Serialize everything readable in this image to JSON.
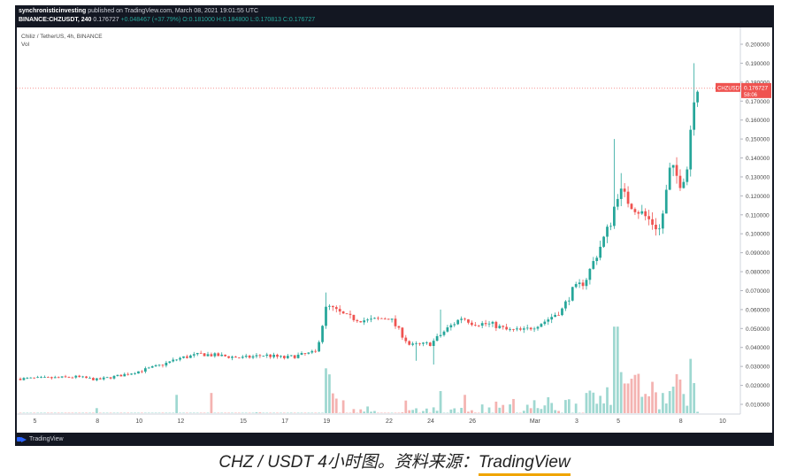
{
  "header": {
    "publisher": "synchronisticinvesting",
    "published_text": "published on TradingView.com, March 08, 2021 19:01:55 UTC",
    "symbol_line_prefix": "BINANCE:CHZUSDT, 240",
    "last": "0.176727",
    "change": "+0.048467 (+37.79%)",
    "ohlc_text": "O:0.181000 H:0.184800 L:0.170813 C:0.176727"
  },
  "footer": {
    "brand": "TradingView"
  },
  "caption": {
    "text": "CHZ / USDT 4小时图。资料来源：",
    "source": "TradingView"
  },
  "colors": {
    "up": "#26a69a",
    "down": "#ef5350",
    "up_vol": "#9fd8d1",
    "down_vol": "#f4b3b1",
    "price_line": "#ef5350",
    "background": "#ffffff"
  },
  "chart_data": {
    "type": "candlestick",
    "title": "Chiliz / TetherUS, 4h, BINANCE",
    "volume_label": "Vol",
    "current_price_label": "CHZUSDT",
    "current_price": 0.176727,
    "countdown": "58:06",
    "ylim": [
      0,
      0.21
    ],
    "y_ticks": [
      "0.200000",
      "0.190000",
      "0.180000",
      "0.170000",
      "0.160000",
      "0.150000",
      "0.140000",
      "0.130000",
      "0.120000",
      "0.110000",
      "0.100000",
      "0.090000",
      "0.080000",
      "0.070000",
      "0.060000",
      "0.050000",
      "0.040000",
      "0.030000",
      "0.020000",
      "0.010000"
    ],
    "x_ticks": [
      {
        "label": "5",
        "day": 0
      },
      {
        "label": "8",
        "day": 3
      },
      {
        "label": "10",
        "day": 5
      },
      {
        "label": "12",
        "day": 7
      },
      {
        "label": "15",
        "day": 10
      },
      {
        "label": "17",
        "day": 12
      },
      {
        "label": "19",
        "day": 14
      },
      {
        "label": "22",
        "day": 17
      },
      {
        "label": "24",
        "day": 19
      },
      {
        "label": "26",
        "day": 21
      },
      {
        "label": "Mar",
        "day": 24
      },
      {
        "label": "3",
        "day": 26
      },
      {
        "label": "5",
        "day": 28
      },
      {
        "label": "8",
        "day": 31
      },
      {
        "label": "10",
        "day": 33
      }
    ],
    "days_span": [
      -0.7,
      33.6
    ],
    "close_keyframes": [
      [
        -0.8,
        0.0235
      ],
      [
        1.0,
        0.024
      ],
      [
        2.0,
        0.0245
      ],
      [
        3.0,
        0.023
      ],
      [
        4.0,
        0.025
      ],
      [
        5.0,
        0.0275
      ],
      [
        6.0,
        0.0305
      ],
      [
        7.0,
        0.0345
      ],
      [
        8.0,
        0.0365
      ],
      [
        9.0,
        0.0355
      ],
      [
        10.0,
        0.0345
      ],
      [
        11.0,
        0.036
      ],
      [
        12.0,
        0.0345
      ],
      [
        13.5,
        0.0375
      ],
      [
        14.0,
        0.062
      ],
      [
        15.0,
        0.056
      ],
      [
        16.0,
        0.054
      ],
      [
        17.0,
        0.056
      ],
      [
        18.0,
        0.041
      ],
      [
        19.0,
        0.042
      ],
      [
        19.8,
        0.05
      ],
      [
        20.5,
        0.056
      ],
      [
        21.0,
        0.053
      ],
      [
        22.0,
        0.052
      ],
      [
        22.7,
        0.049
      ],
      [
        23.5,
        0.049
      ],
      [
        24.5,
        0.054
      ],
      [
        25.3,
        0.06
      ],
      [
        25.8,
        0.07
      ],
      [
        26.4,
        0.075
      ],
      [
        27.0,
        0.09
      ],
      [
        27.6,
        0.105
      ],
      [
        28.0,
        0.123
      ],
      [
        28.5,
        0.117
      ],
      [
        29.0,
        0.112
      ],
      [
        30.0,
        0.102
      ],
      [
        30.5,
        0.135
      ],
      [
        31.0,
        0.127
      ],
      [
        31.3,
        0.135
      ],
      [
        31.5,
        0.16
      ],
      [
        31.7,
        0.181
      ],
      [
        31.9,
        0.1767
      ]
    ],
    "volume_keyframes": [
      [
        -0.8,
        0.0035
      ],
      [
        13.8,
        0.004
      ],
      [
        14.0,
        0.028
      ],
      [
        14.5,
        0.009
      ],
      [
        17.0,
        0.004
      ],
      [
        19.8,
        0.007
      ],
      [
        25.5,
        0.01
      ],
      [
        27.0,
        0.012
      ],
      [
        28.0,
        0.03
      ],
      [
        30.0,
        0.012
      ],
      [
        31.5,
        0.024
      ],
      [
        31.9,
        0.01
      ]
    ],
    "volume_spikes": [
      [
        3.0,
        0.008
      ],
      [
        6.8,
        0.015
      ],
      [
        8.5,
        0.016
      ],
      [
        14.0,
        0.029
      ],
      [
        17.8,
        0.012
      ],
      [
        19.5,
        0.017
      ],
      [
        20.7,
        0.015
      ],
      [
        26.5,
        0.016
      ],
      [
        27.5,
        0.019
      ],
      [
        27.9,
        0.051
      ],
      [
        28.1,
        0.027
      ],
      [
        28.4,
        0.021
      ],
      [
        30.5,
        0.017
      ],
      [
        31.5,
        0.034
      ]
    ],
    "high_spikes": [
      [
        14.0,
        0.069
      ],
      [
        19.5,
        0.06
      ],
      [
        27.8,
        0.15
      ],
      [
        28.1,
        0.132
      ],
      [
        31.6,
        0.19
      ]
    ],
    "low_spikes": [
      [
        18.3,
        0.033
      ],
      [
        19.2,
        0.031
      ]
    ]
  }
}
